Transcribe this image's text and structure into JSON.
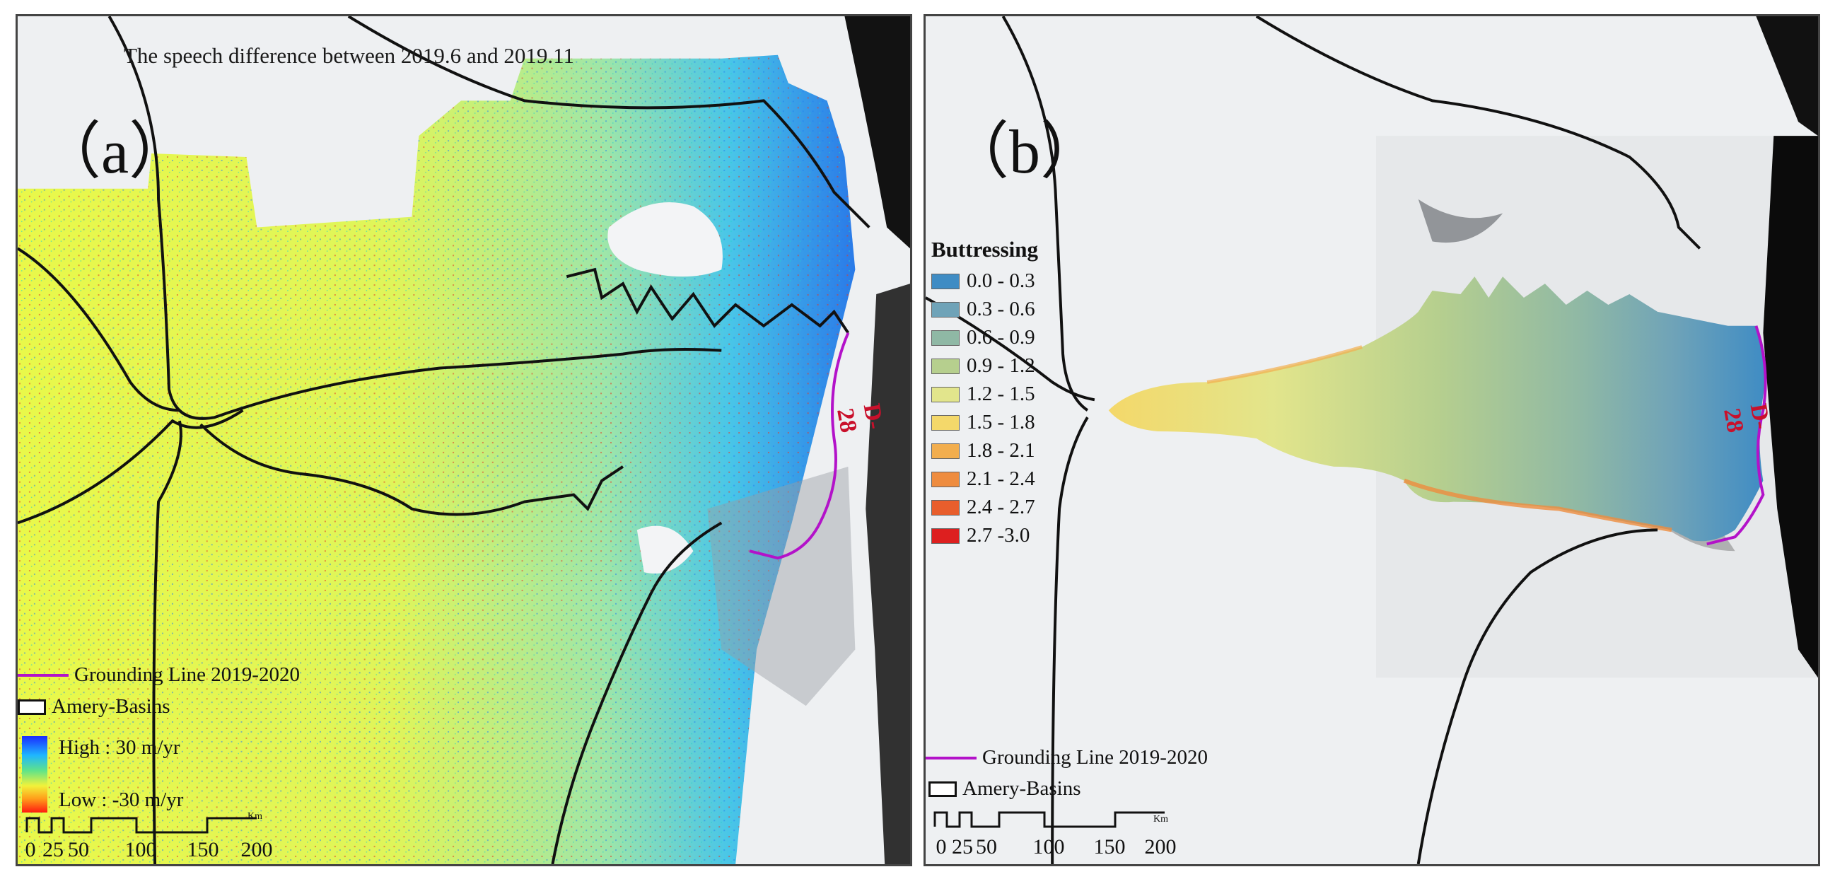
{
  "panel_a": {
    "title": "The speech difference  between 2019.6 and 2019.11",
    "label": "（a）",
    "feature_label": "D-28",
    "legend": {
      "grounding_line": "Grounding Line 2019-2020",
      "basins": "Amery-Basins",
      "high": "High : 30 m/yr",
      "low": "Low : -30 m/yr"
    },
    "colorbar_colors": [
      "#1a2bff",
      "#1fb6ff",
      "#5fe38a",
      "#f2f23a",
      "#ff9d1a",
      "#ff1a10"
    ],
    "scale": {
      "unit": "Km",
      "ticks": [
        "0",
        "25",
        "50",
        "100",
        "150",
        "200"
      ]
    }
  },
  "panel_b": {
    "label": "（b）",
    "feature_label": "D-28",
    "legend_title": "Buttressing",
    "classes": [
      {
        "label": "0.0 - 0.3",
        "color": "#3f8cc4"
      },
      {
        "label": "0.3 - 0.6",
        "color": "#6fa3b8"
      },
      {
        "label": "0.6 - 0.9",
        "color": "#8fb8a5"
      },
      {
        "label": "0.9 - 1.2",
        "color": "#b6cf8e"
      },
      {
        "label": "1.2 - 1.5",
        "color": "#e2e58c"
      },
      {
        "label": "1.5 - 1.8",
        "color": "#f4d86a"
      },
      {
        "label": "1.8 - 2.1",
        "color": "#f2ae4e"
      },
      {
        "label": "2.1 - 2.4",
        "color": "#ee8c3f"
      },
      {
        "label": "2.4 - 2.7",
        "color": "#e85e2c"
      },
      {
        "label": "2.7 -3.0",
        "color": "#dd1f1f"
      }
    ],
    "legend": {
      "grounding_line": "Grounding Line 2019-2020",
      "basins": "Amery-Basins"
    },
    "scale": {
      "unit": "Km",
      "ticks": [
        "0",
        "25",
        "50",
        "100",
        "150",
        "200"
      ]
    }
  },
  "colors": {
    "grounding_line": "#b312c9",
    "basin_outline": "#111111",
    "ice_background": "#eef0f2",
    "ocean": "#0c0c0c"
  }
}
